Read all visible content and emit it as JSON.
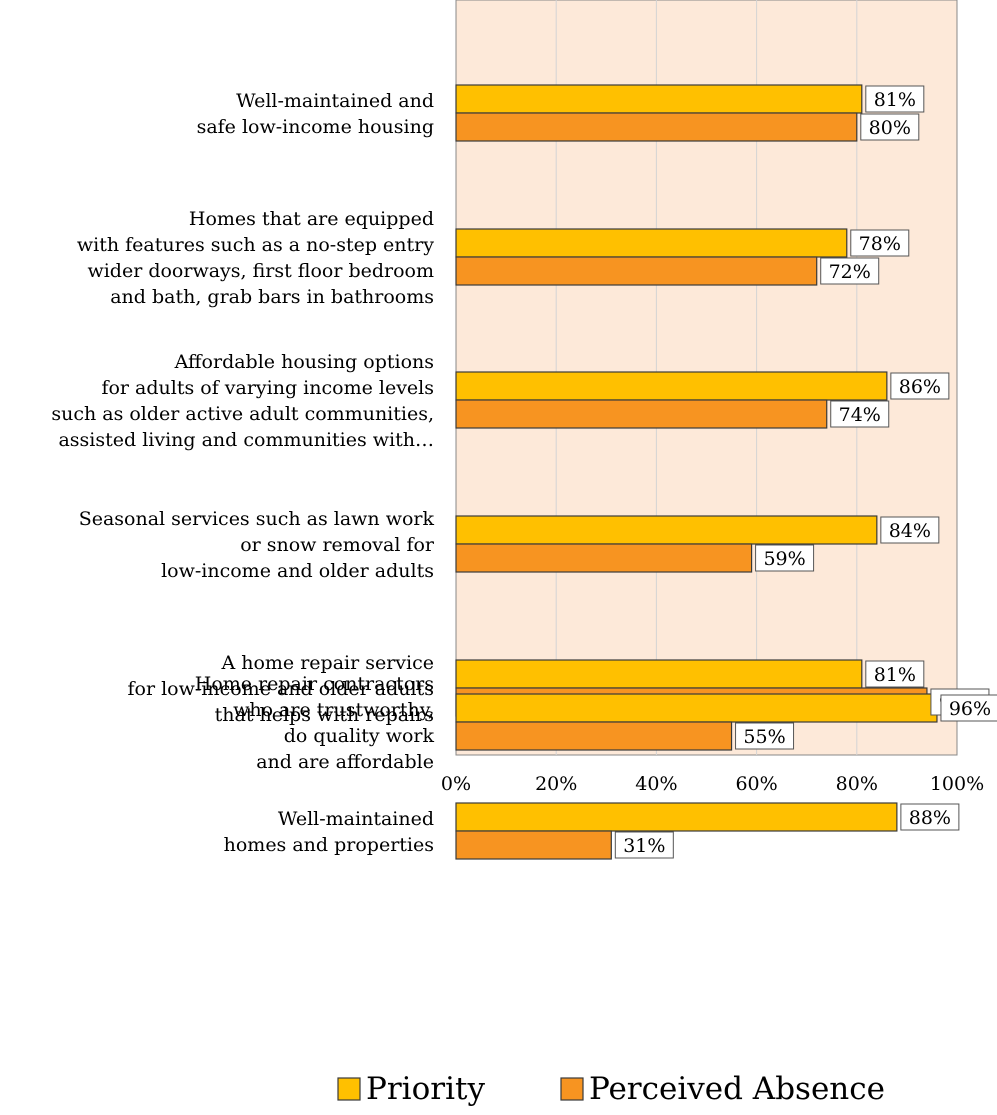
{
  "chart_data": {
    "type": "bar",
    "orientation": "horizontal",
    "categories": [
      [
        "Well-maintained and",
        "safe low-income housing"
      ],
      [
        "Homes that are equipped",
        "with features such as a no-step entry",
        "wider doorways, first floor bedroom",
        "and bath, grab bars in bathrooms"
      ],
      [
        "Affordable housing options",
        "for adults of varying income levels",
        "such as older active adult communities,",
        "assisted living and communities with…"
      ],
      [
        "Seasonal services such as lawn work",
        "or snow removal for",
        "low-income and older adults"
      ],
      [
        "A home repair service",
        "for low-income and older adults",
        "that helps with repairs"
      ],
      [
        "Well-maintained",
        "homes and properties"
      ],
      [
        "Home repair contractors",
        "who are trustworthy,",
        "do quality work",
        "and are affordable"
      ]
    ],
    "series": [
      {
        "name": "Priority",
        "color": "#FFC000",
        "values": [
          81,
          78,
          86,
          84,
          81,
          88,
          96
        ]
      },
      {
        "name": "Perceived Absence",
        "color": "#F79421",
        "values": [
          80,
          72,
          74,
          59,
          94,
          31,
          55
        ]
      }
    ],
    "data_labels": {
      "Priority": [
        "81%",
        "78%",
        "86%",
        "84%",
        "81%",
        "88%",
        "96%"
      ],
      "Perceived Absence": [
        "80%",
        "72%",
        "74%",
        "59%",
        "94%",
        "31%",
        "55%"
      ]
    },
    "xlim": [
      0,
      100
    ],
    "xticks": [
      "0%",
      "20%",
      "40%",
      "60%",
      "80%",
      "100%"
    ],
    "grid": true,
    "legend_position": "bottom",
    "plot_background": "#FDE9D9"
  }
}
